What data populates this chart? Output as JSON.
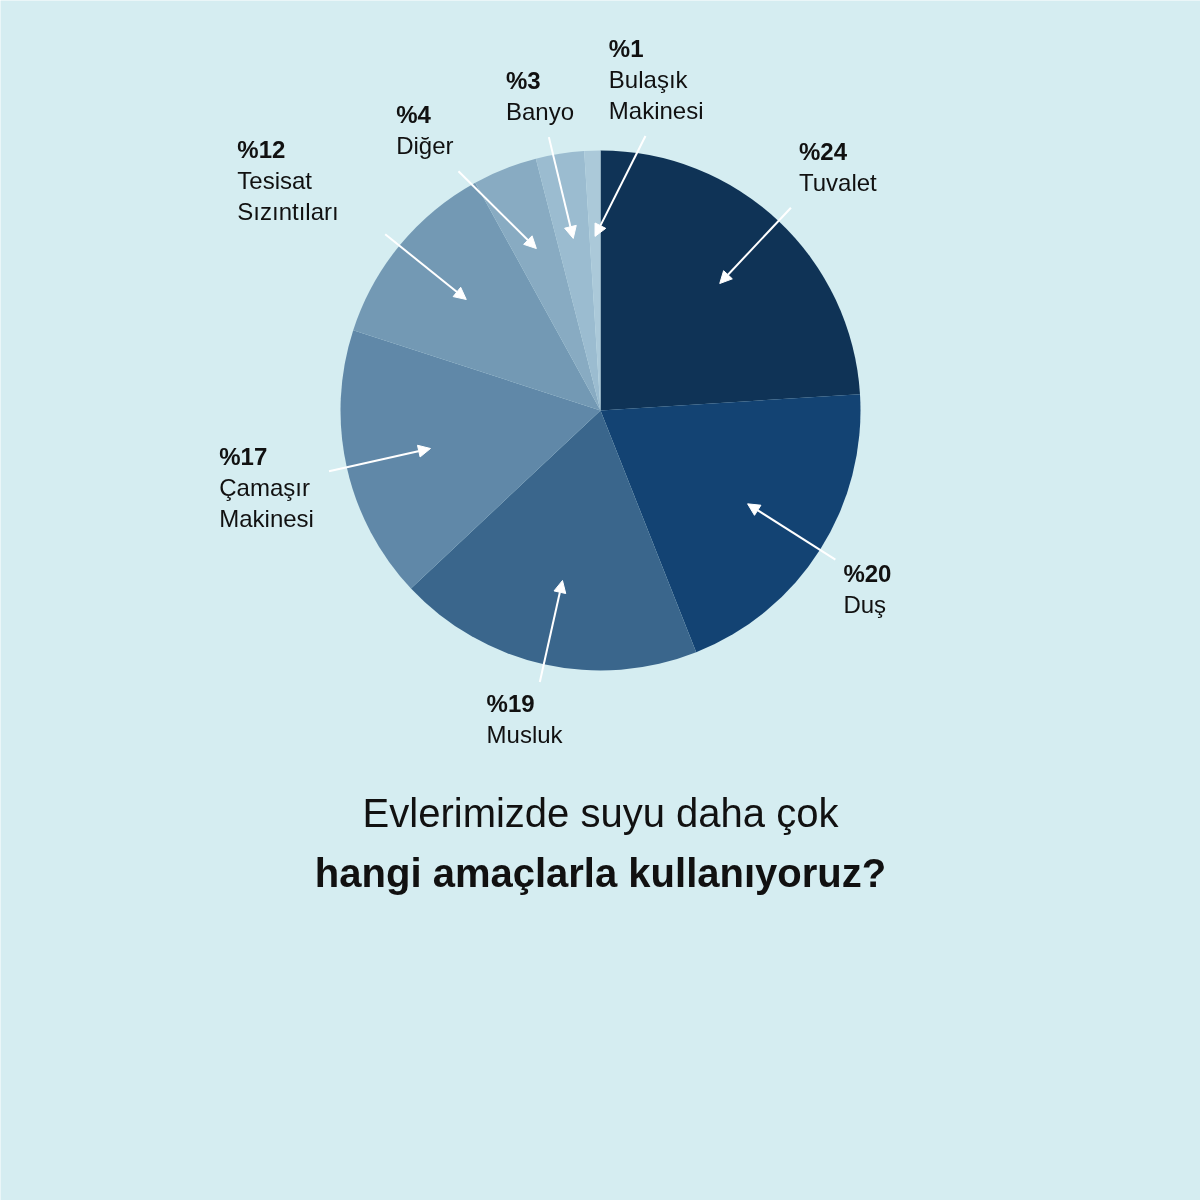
{
  "chart_data": {
    "type": "pie",
    "title": "Evlerimizde suyu daha çok",
    "subtitle": "hangi amaçlarla kullanıyoruz?",
    "categories": [
      "Tuvalet",
      "Duş",
      "Musluk",
      "Çamaşır Makinesi",
      "Tesisat Sızıntıları",
      "Diğer",
      "Banyo",
      "Bulaşık Makinesi"
    ],
    "values": [
      24,
      20,
      19,
      17,
      12,
      4,
      3,
      1
    ],
    "colors": [
      "#0f3356",
      "#134373",
      "#3a668c",
      "#6088a8",
      "#7399b4",
      "#88abc2",
      "#9bbcd0",
      "#abc9d9"
    ],
    "value_labels": [
      "%24",
      "%20",
      "%19",
      "%17",
      "%12",
      "%4",
      "%3",
      "%1"
    ]
  }
}
